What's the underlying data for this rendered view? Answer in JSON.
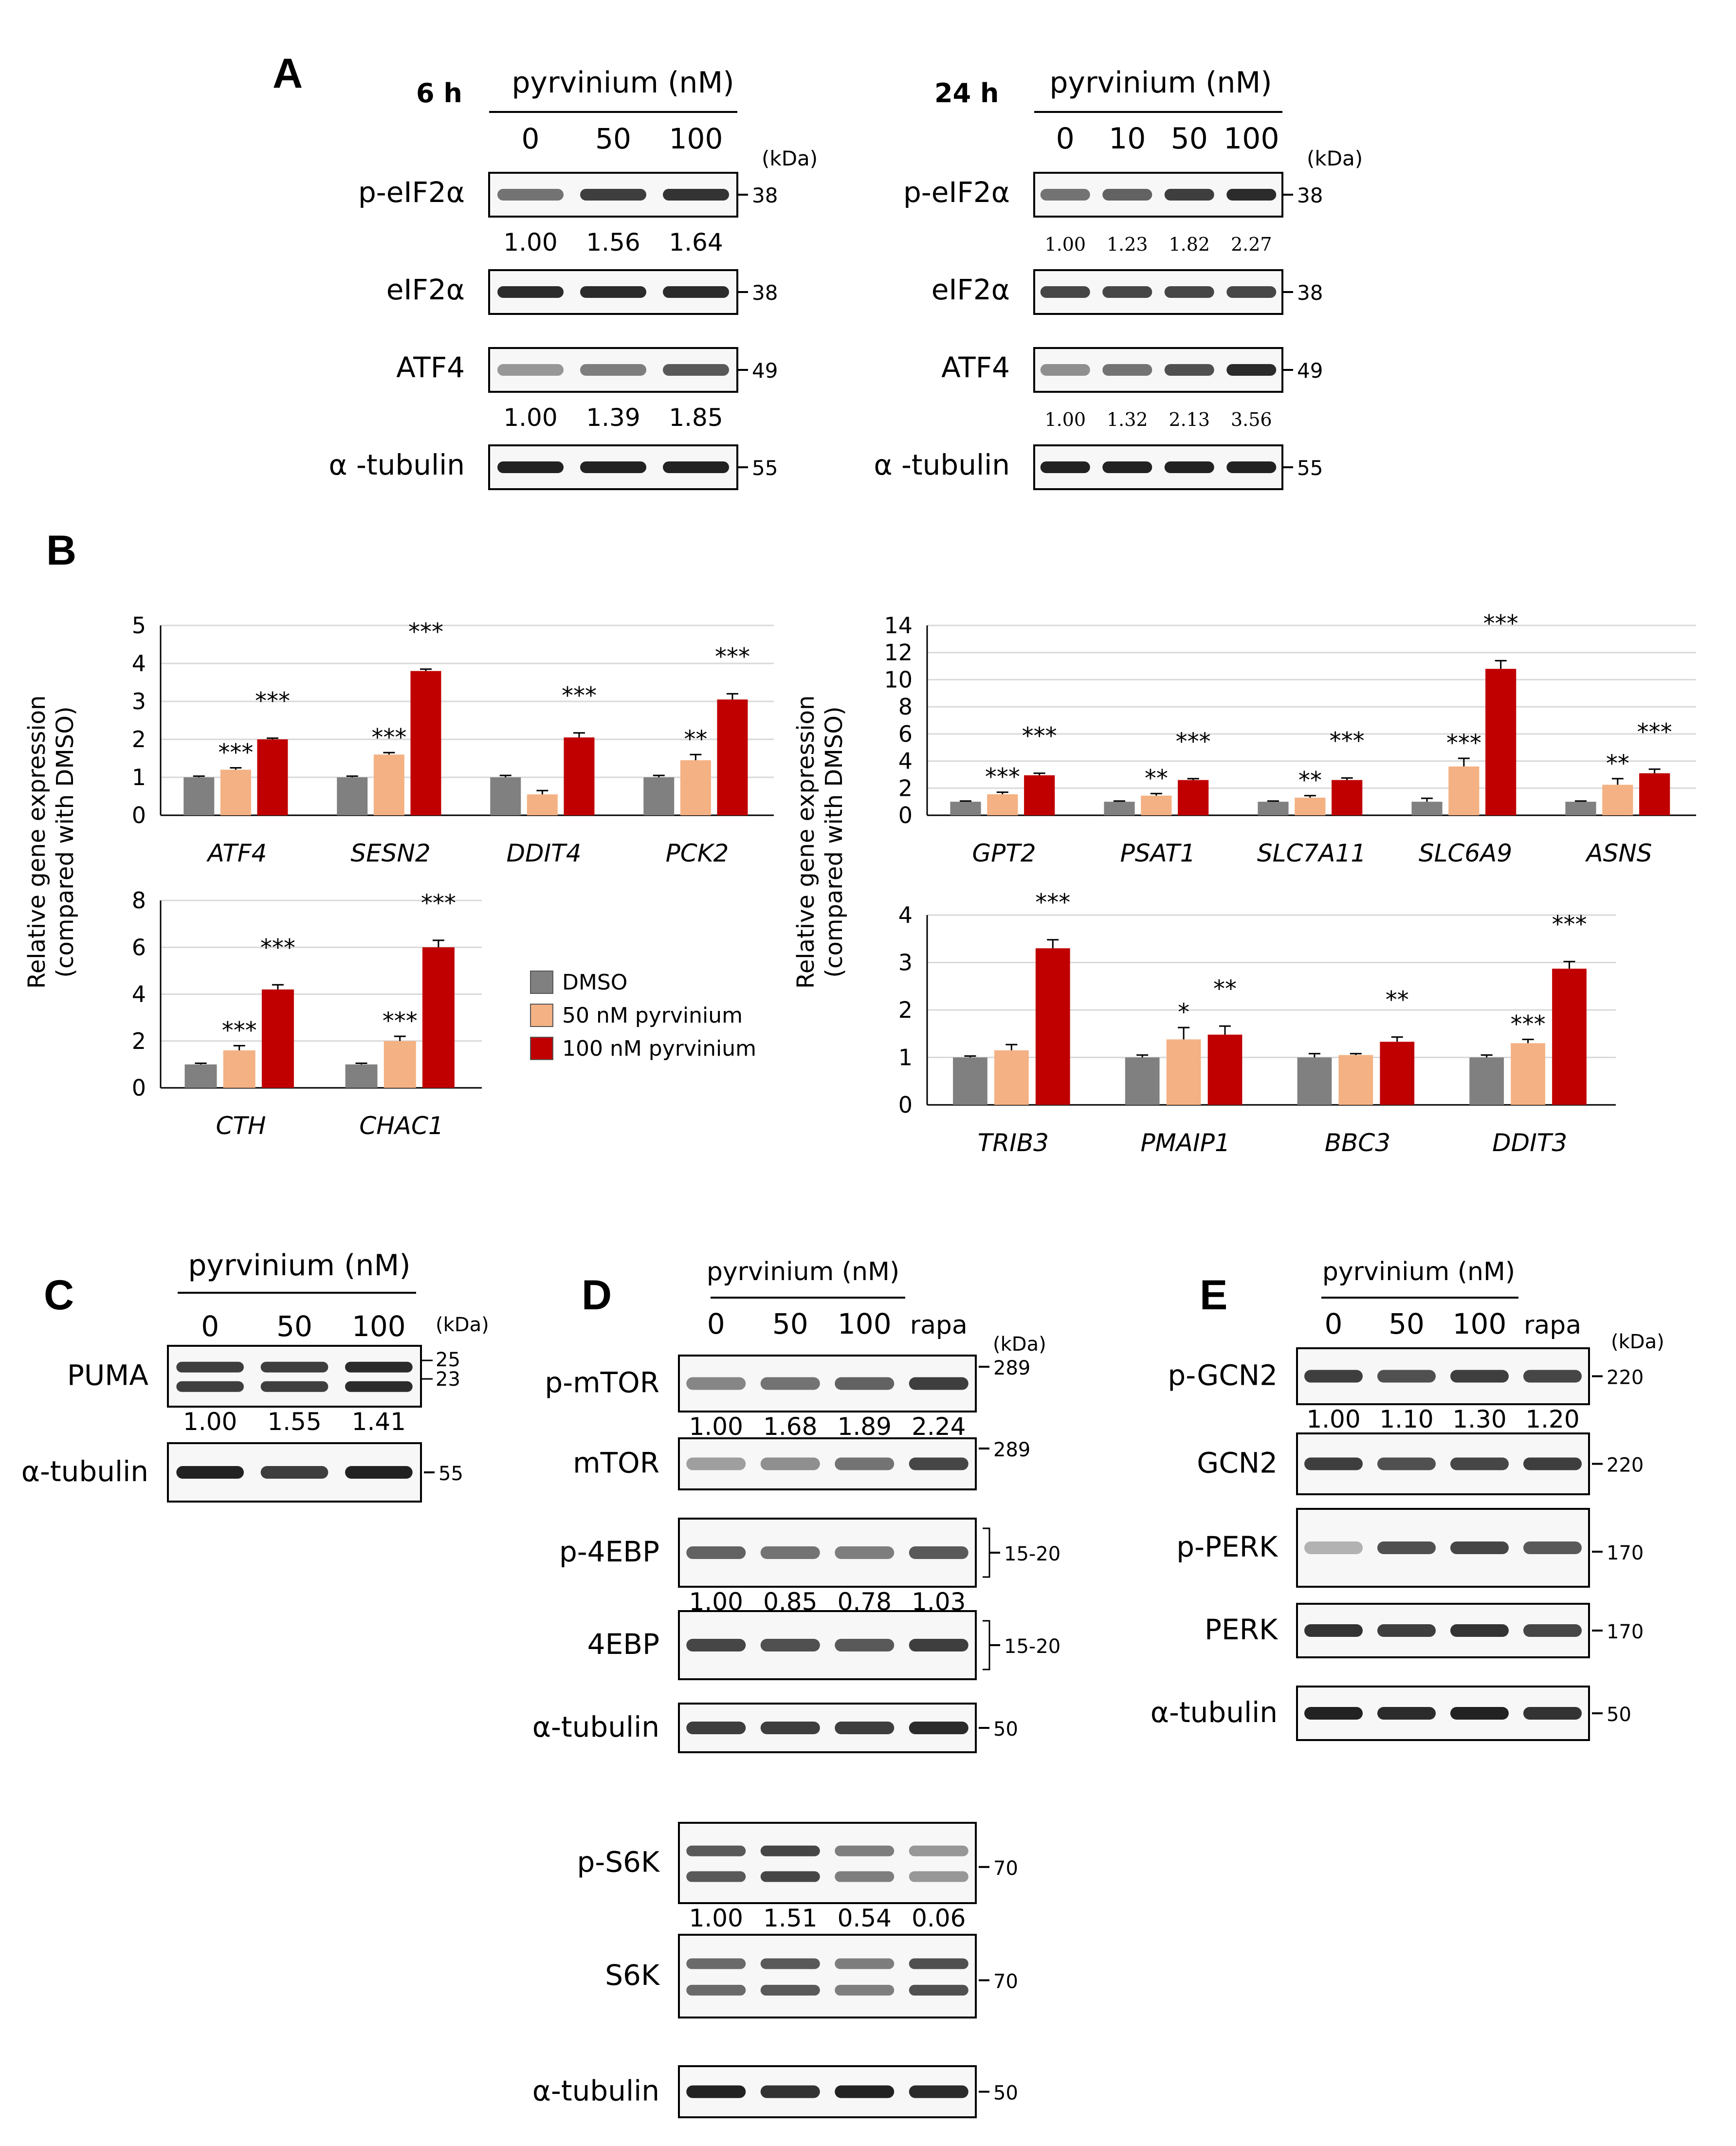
{
  "panel_labels": [
    "A",
    "B",
    "C",
    "D",
    "E"
  ],
  "panelA": {
    "left": {
      "time": "6 h",
      "treatment": "pyrvinium (nM)",
      "doses": [
        "0",
        "50",
        "100"
      ],
      "kda_unit": "(kDa)",
      "blots": [
        {
          "label": "p-eIF2α",
          "kda": "38",
          "quant": [
            "1.00",
            "1.56",
            "1.64"
          ],
          "intensity": [
            0.55,
            0.85,
            0.9
          ]
        },
        {
          "label": "eIF2α",
          "kda": "38",
          "intensity": [
            0.95,
            0.95,
            0.95
          ]
        },
        {
          "label": "ATF4",
          "kda": "49",
          "quant": [
            "1.00",
            "1.39",
            "1.85"
          ],
          "intensity": [
            0.35,
            0.5,
            0.7
          ]
        },
        {
          "label": "α -tubulin",
          "kda": "55",
          "intensity": [
            1,
            1,
            1
          ]
        }
      ]
    },
    "right": {
      "time": "24 h",
      "treatment": "pyrvinium (nM)",
      "doses": [
        "0",
        "10",
        "50",
        "100"
      ],
      "kda_unit": "(kDa)",
      "blots": [
        {
          "label": "p-eIF2α",
          "kda": "38",
          "quant": [
            "1.00",
            "1.23",
            "1.82",
            "2.27"
          ],
          "intensity": [
            0.55,
            0.65,
            0.85,
            0.95
          ]
        },
        {
          "label": "eIF2α",
          "kda": "38",
          "intensity": [
            0.8,
            0.8,
            0.8,
            0.8
          ]
        },
        {
          "label": "ATF4",
          "kda": "49",
          "quant": [
            "1.00",
            "1.32",
            "2.13",
            "3.56"
          ],
          "intensity": [
            0.4,
            0.55,
            0.75,
            0.95
          ]
        },
        {
          "label": "α -tubulin",
          "kda": "55",
          "intensity": [
            1,
            1,
            1,
            1
          ]
        }
      ]
    }
  },
  "panelB": {
    "ylabel_line1": "Relative gene expression",
    "ylabel_line2": "(compared with DMSO)",
    "legend": [
      {
        "label": "DMSO",
        "color": "#808080"
      },
      {
        "label": "50 nM pyrvinium",
        "color": "#f4b183"
      },
      {
        "label": "100 nM pyrvinium",
        "color": "#c00000"
      }
    ]
  },
  "chart_data": [
    {
      "type": "bar",
      "title": "",
      "xlabel": "",
      "ylabel": "Relative gene expression (compared with DMSO)",
      "ylim": [
        0,
        5
      ],
      "yticks": [
        0,
        1,
        2,
        3,
        4,
        5
      ],
      "categories": [
        "ATF4",
        "SESN2",
        "DDIT4",
        "PCK2"
      ],
      "series": [
        {
          "name": "DMSO",
          "values": [
            1.0,
            1.0,
            1.0,
            1.0
          ],
          "errors": [
            0.03,
            0.03,
            0.05,
            0.05
          ]
        },
        {
          "name": "50 nM pyrvinium",
          "values": [
            1.2,
            1.6,
            0.55,
            1.45
          ],
          "errors": [
            0.05,
            0.05,
            0.1,
            0.15
          ],
          "significance": [
            "***",
            "***",
            "",
            "**"
          ]
        },
        {
          "name": "100 nM pyrvinium",
          "values": [
            2.0,
            3.8,
            2.05,
            3.05
          ],
          "errors": [
            0.03,
            0.05,
            0.12,
            0.15
          ],
          "significance": [
            "***",
            "***",
            "***",
            "***"
          ]
        }
      ]
    },
    {
      "type": "bar",
      "title": "",
      "xlabel": "",
      "ylabel": "Relative gene expression (compared with DMSO)",
      "ylim": [
        0,
        14
      ],
      "yticks": [
        0,
        2,
        4,
        6,
        8,
        10,
        12,
        14
      ],
      "categories": [
        "GPT2",
        "PSAT1",
        "SLC7A11",
        "SLC6A9",
        "ASNS"
      ],
      "series": [
        {
          "name": "DMSO",
          "values": [
            1.0,
            1.0,
            1.0,
            1.0,
            1.0
          ],
          "errors": [
            0.05,
            0.05,
            0.05,
            0.25,
            0.05
          ]
        },
        {
          "name": "50 nM pyrvinium",
          "values": [
            1.55,
            1.45,
            1.3,
            3.6,
            2.25
          ],
          "errors": [
            0.15,
            0.15,
            0.15,
            0.6,
            0.45
          ],
          "significance": [
            "***",
            "**",
            "**",
            "***",
            "**"
          ]
        },
        {
          "name": "100 nM pyrvinium",
          "values": [
            2.95,
            2.6,
            2.6,
            10.8,
            3.1
          ],
          "errors": [
            0.15,
            0.1,
            0.15,
            0.6,
            0.3
          ],
          "significance": [
            "***",
            "***",
            "***",
            "***",
            "***"
          ]
        }
      ]
    },
    {
      "type": "bar",
      "title": "",
      "xlabel": "",
      "ylabel": "Relative gene expression (compared with DMSO)",
      "ylim": [
        0,
        8
      ],
      "yticks": [
        0,
        2,
        4,
        6,
        8
      ],
      "categories": [
        "CTH",
        "CHAC1"
      ],
      "series": [
        {
          "name": "DMSO",
          "values": [
            1.0,
            1.0
          ],
          "errors": [
            0.05,
            0.05
          ]
        },
        {
          "name": "50 nM pyrvinium",
          "values": [
            1.6,
            2.0
          ],
          "errors": [
            0.2,
            0.2
          ],
          "significance": [
            "***",
            "***"
          ]
        },
        {
          "name": "100 nM pyrvinium",
          "values": [
            4.2,
            6.0
          ],
          "errors": [
            0.2,
            0.3
          ],
          "significance": [
            "***",
            "***"
          ]
        }
      ]
    },
    {
      "type": "bar",
      "title": "",
      "xlabel": "",
      "ylabel": "Relative gene expression (compared with DMSO)",
      "ylim": [
        0,
        4
      ],
      "yticks": [
        0,
        1,
        2,
        3,
        4
      ],
      "categories": [
        "TRIB3",
        "PMAIP1",
        "BBC3",
        "DDIT3"
      ],
      "series": [
        {
          "name": "DMSO",
          "values": [
            1.0,
            1.0,
            1.0,
            1.0
          ],
          "errors": [
            0.03,
            0.05,
            0.08,
            0.05
          ]
        },
        {
          "name": "50 nM pyrvinium",
          "values": [
            1.15,
            1.38,
            1.05,
            1.3
          ],
          "errors": [
            0.12,
            0.25,
            0.03,
            0.08
          ],
          "significance": [
            "",
            "*",
            "",
            "***"
          ]
        },
        {
          "name": "100 nM pyrvinium",
          "values": [
            3.3,
            1.48,
            1.33,
            2.87
          ],
          "errors": [
            0.18,
            0.18,
            0.1,
            0.15
          ],
          "significance": [
            "***",
            "**",
            "**",
            "***"
          ]
        }
      ]
    }
  ],
  "panelC": {
    "treatment": "pyrvinium (nM)",
    "doses": [
      "0",
      "50",
      "100"
    ],
    "kda_unit": "(kDa)",
    "blots": [
      {
        "label": "PUMA",
        "kda": [
          "25",
          "23"
        ],
        "quant": [
          "1.00",
          "1.55",
          "1.41"
        ],
        "intensity": [
          0.85,
          0.85,
          0.95
        ]
      },
      {
        "label": "α-tubulin",
        "kda": [
          "55"
        ],
        "intensity": [
          1,
          0.85,
          1
        ]
      }
    ]
  },
  "panelD": {
    "treatment": "pyrvinium (nM)",
    "doses": [
      "0",
      "50",
      "100",
      "rapa"
    ],
    "kda_unit": "(kDa)",
    "blots": [
      {
        "label": "p-mTOR",
        "kda": "289",
        "quant": [
          "1.00",
          "1.68",
          "1.89",
          "2.24"
        ],
        "intensity": [
          0.45,
          0.55,
          0.65,
          0.85
        ]
      },
      {
        "label": "mTOR",
        "kda": "289",
        "intensity": [
          0.3,
          0.4,
          0.55,
          0.8
        ]
      },
      {
        "label": "p-4EBP",
        "kda": "15-20",
        "quant": [
          "1.00",
          "0.85",
          "0.78",
          "1.03"
        ],
        "intensity": [
          0.65,
          0.55,
          0.5,
          0.7
        ]
      },
      {
        "label": "4EBP",
        "kda": "15-20",
        "intensity": [
          0.8,
          0.75,
          0.7,
          0.85
        ]
      },
      {
        "label": "α-tubulin",
        "kda": "50",
        "intensity": [
          0.85,
          0.85,
          0.85,
          0.95
        ]
      },
      {
        "label": "p-S6K",
        "kda": "70",
        "quant": [
          "1.00",
          "1.51",
          "0.54",
          "0.06"
        ],
        "intensity": [
          0.7,
          0.8,
          0.5,
          0.35
        ]
      },
      {
        "label": "S6K",
        "kda": "70",
        "intensity": [
          0.6,
          0.7,
          0.5,
          0.75
        ]
      },
      {
        "label": "α-tubulin",
        "kda": "50",
        "intensity": [
          1,
          0.9,
          1,
          0.95
        ]
      }
    ]
  },
  "panelE": {
    "treatment": "pyrvinium (nM)",
    "doses": [
      "0",
      "50",
      "100",
      "rapa"
    ],
    "kda_unit": "(kDa)",
    "blots": [
      {
        "label": "p-GCN2",
        "kda": "220",
        "quant": [
          "1.00",
          "1.10",
          "1.30",
          "1.20"
        ],
        "intensity": [
          0.85,
          0.75,
          0.85,
          0.8
        ]
      },
      {
        "label": "GCN2",
        "kda": "220",
        "intensity": [
          0.85,
          0.75,
          0.8,
          0.85
        ]
      },
      {
        "label": "p-PERK",
        "kda": "170",
        "intensity": [
          0.2,
          0.75,
          0.8,
          0.7
        ]
      },
      {
        "label": "PERK",
        "kda": "170",
        "intensity": [
          0.9,
          0.85,
          0.9,
          0.8
        ]
      },
      {
        "label": "α-tubulin",
        "kda": "50",
        "intensity": [
          1,
          0.95,
          1,
          0.9
        ]
      }
    ]
  }
}
